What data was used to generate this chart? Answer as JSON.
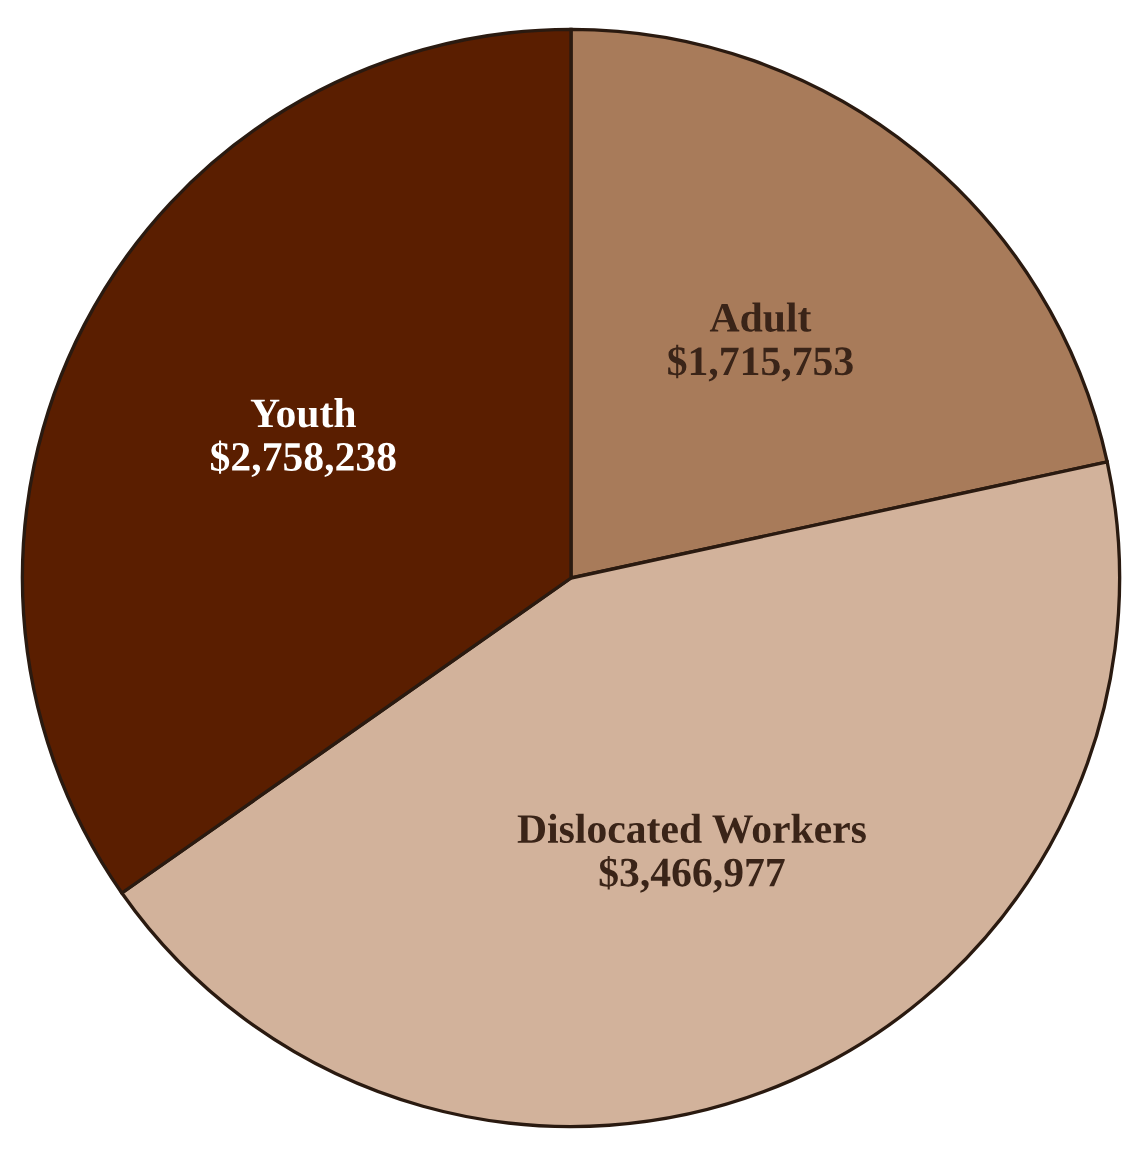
{
  "chart_data": {
    "type": "pie",
    "categories": [
      "Adult",
      "Dislocated Workers",
      "Youth"
    ],
    "values": [
      1715753,
      3466977,
      2758238
    ],
    "value_labels": [
      "$1,715,753",
      "$3,466,977",
      "$2,758,238"
    ],
    "colors": [
      "#a87b5a",
      "#d2b29b",
      "#5a1e00"
    ]
  }
}
